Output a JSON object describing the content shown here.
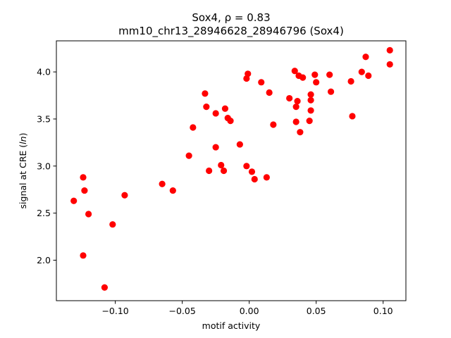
{
  "chart_data": {
    "type": "scatter",
    "title": "Sox4, ρ = 0.83",
    "subtitle": "mm10_chr13_28946628_28946796 (Sox4)",
    "xlabel": "motif activity",
    "ylabel_prefix": "signal at CRE (",
    "ylabel_italic": "ln",
    "ylabel_suffix": ")",
    "xlim": [
      -0.144,
      0.117
    ],
    "ylim": [
      1.57,
      4.33
    ],
    "xticks": [
      -0.1,
      -0.05,
      0.0,
      0.05,
      0.1
    ],
    "xtick_labels": [
      "−0.10",
      "−0.05",
      "0.00",
      "0.05",
      "0.10"
    ],
    "yticks": [
      2.0,
      2.5,
      3.0,
      3.5,
      4.0
    ],
    "ytick_labels": [
      "2.0",
      "2.5",
      "3.0",
      "3.5",
      "4.0"
    ],
    "grid": false,
    "marker_color": "#ff0000",
    "points": [
      {
        "x": -0.131,
        "y": 2.63
      },
      {
        "x": -0.124,
        "y": 2.88
      },
      {
        "x": -0.123,
        "y": 2.74
      },
      {
        "x": -0.12,
        "y": 2.49
      },
      {
        "x": -0.124,
        "y": 2.05
      },
      {
        "x": -0.108,
        "y": 1.71
      },
      {
        "x": -0.102,
        "y": 2.38
      },
      {
        "x": -0.093,
        "y": 2.69
      },
      {
        "x": -0.065,
        "y": 2.81
      },
      {
        "x": -0.057,
        "y": 2.74
      },
      {
        "x": -0.045,
        "y": 3.11
      },
      {
        "x": -0.042,
        "y": 3.41
      },
      {
        "x": -0.033,
        "y": 3.77
      },
      {
        "x": -0.032,
        "y": 3.63
      },
      {
        "x": -0.03,
        "y": 2.95
      },
      {
        "x": -0.025,
        "y": 3.56
      },
      {
        "x": -0.025,
        "y": 3.2
      },
      {
        "x": -0.021,
        "y": 3.01
      },
      {
        "x": -0.019,
        "y": 2.95
      },
      {
        "x": -0.018,
        "y": 3.61
      },
      {
        "x": -0.016,
        "y": 3.51
      },
      {
        "x": -0.014,
        "y": 3.48
      },
      {
        "x": -0.007,
        "y": 3.23
      },
      {
        "x": -0.002,
        "y": 3.0
      },
      {
        "x": -0.002,
        "y": 3.93
      },
      {
        "x": -0.001,
        "y": 3.98
      },
      {
        "x": 0.002,
        "y": 2.94
      },
      {
        "x": 0.004,
        "y": 2.86
      },
      {
        "x": 0.009,
        "y": 3.89
      },
      {
        "x": 0.013,
        "y": 2.88
      },
      {
        "x": 0.015,
        "y": 3.78
      },
      {
        "x": 0.018,
        "y": 3.44
      },
      {
        "x": 0.03,
        "y": 3.72
      },
      {
        "x": 0.034,
        "y": 4.01
      },
      {
        "x": 0.035,
        "y": 3.47
      },
      {
        "x": 0.035,
        "y": 3.63
      },
      {
        "x": 0.036,
        "y": 3.69
      },
      {
        "x": 0.037,
        "y": 3.96
      },
      {
        "x": 0.038,
        "y": 3.36
      },
      {
        "x": 0.04,
        "y": 3.94
      },
      {
        "x": 0.045,
        "y": 3.48
      },
      {
        "x": 0.046,
        "y": 3.59
      },
      {
        "x": 0.046,
        "y": 3.7
      },
      {
        "x": 0.046,
        "y": 3.76
      },
      {
        "x": 0.049,
        "y": 3.97
      },
      {
        "x": 0.05,
        "y": 3.89
      },
      {
        "x": 0.06,
        "y": 3.97
      },
      {
        "x": 0.061,
        "y": 3.79
      },
      {
        "x": 0.076,
        "y": 3.9
      },
      {
        "x": 0.077,
        "y": 3.53
      },
      {
        "x": 0.084,
        "y": 4.0
      },
      {
        "x": 0.087,
        "y": 4.16
      },
      {
        "x": 0.089,
        "y": 3.96
      },
      {
        "x": 0.105,
        "y": 4.23
      },
      {
        "x": 0.105,
        "y": 4.08
      }
    ]
  }
}
